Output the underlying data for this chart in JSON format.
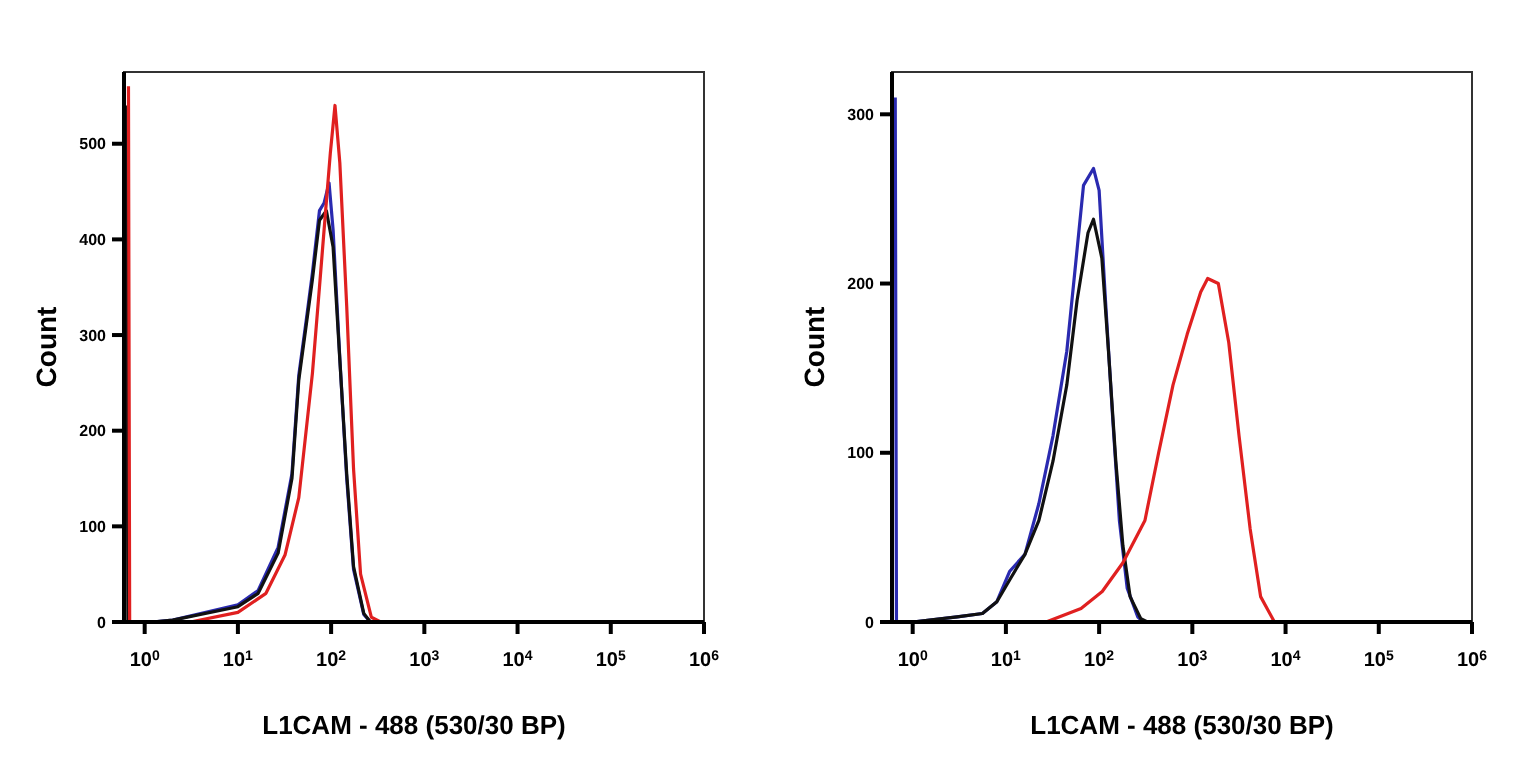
{
  "chart_data": [
    {
      "type": "line",
      "xlabel": "L1CAM - 488 (530/30 BP)",
      "ylabel": "Count",
      "log": "x",
      "xlim": [
        0.6,
        1000000
      ],
      "ylim": [
        0,
        575
      ],
      "xticks": [
        {
          "value": 1,
          "label": "10$^{0}$"
        },
        {
          "value": 10,
          "label": "10$^{1}$"
        },
        {
          "value": 100,
          "label": "10$^{2}$"
        },
        {
          "value": 1000,
          "label": "10$^{3}$"
        },
        {
          "value": 10000,
          "label": "10$^{4}$"
        },
        {
          "value": 100000,
          "label": "10$^{5}$"
        },
        {
          "value": 1000000,
          "label": "10$^{6}$"
        }
      ],
      "yticks": [
        0,
        100,
        200,
        300,
        400,
        500
      ],
      "series": [
        {
          "color": "#2a2ab0",
          "x": [
            1.2,
            2,
            10,
            16.5,
            27,
            38,
            45,
            54,
            63,
            75,
            84,
            95,
            105,
            124,
            147,
            174,
            224,
            264
          ],
          "values": [
            0,
            2,
            18,
            33,
            78,
            155,
            258,
            315,
            365,
            430,
            438,
            459,
            410,
            275,
            150,
            55,
            8,
            0
          ]
        },
        {
          "color": "#111111",
          "x": [
            0.64,
            0.66,
            1.2,
            2,
            10,
            16.5,
            27,
            38,
            45,
            54,
            63,
            75,
            89,
            105,
            124,
            147,
            174,
            224,
            264
          ],
          "values": [
            540,
            0,
            0,
            2,
            16,
            30,
            72,
            150,
            253,
            310,
            358,
            420,
            430,
            392,
            274,
            155,
            58,
            9,
            0
          ]
        },
        {
          "color": "#e02020",
          "x": [
            0.67,
            0.69,
            3.1,
            10,
            20,
            32,
            45,
            63,
            75,
            89,
            98,
            110,
            124,
            147,
            174,
            207,
            270,
            340
          ],
          "values": [
            560,
            0,
            0,
            10,
            30,
            70,
            130,
            260,
            350,
            440,
            490,
            540,
            480,
            330,
            160,
            50,
            5,
            0
          ]
        }
      ]
    },
    {
      "type": "line",
      "xlabel": "L1CAM - 488 (530/30 BP)",
      "ylabel": "Count",
      "log": "x",
      "xlim": [
        0.6,
        1000000
      ],
      "ylim": [
        0,
        325
      ],
      "xticks": [
        {
          "value": 1,
          "label": "10$^{0}$"
        },
        {
          "value": 10,
          "label": "10$^{1}$"
        },
        {
          "value": 100,
          "label": "10$^{2}$"
        },
        {
          "value": 1000,
          "label": "10$^{3}$"
        },
        {
          "value": 10000,
          "label": "10$^{4}$"
        },
        {
          "value": 100000,
          "label": "10$^{5}$"
        },
        {
          "value": 1000000,
          "label": "10$^{6}$"
        }
      ],
      "yticks": [
        0,
        100,
        200,
        300
      ],
      "series": [
        {
          "color": "#2a2ab0",
          "x": [
            0.65,
            0.67,
            1,
            3,
            5.6,
            8,
            11,
            16,
            22.6,
            32,
            45,
            58,
            68,
            87,
            100,
            117,
            140,
            165,
            200,
            260,
            300
          ],
          "values": [
            310,
            0,
            0,
            3,
            5,
            12,
            30,
            40,
            70,
            110,
            160,
            220,
            258,
            268,
            255,
            190,
            120,
            60,
            20,
            3,
            0
          ]
        },
        {
          "color": "#111111",
          "x": [
            1,
            3,
            5.6,
            8,
            11,
            16,
            22.6,
            32,
            45,
            58,
            76,
            87,
            107,
            126,
            151,
            180,
            215,
            280,
            330
          ],
          "values": [
            0,
            3,
            5,
            12,
            25,
            40,
            60,
            95,
            140,
            190,
            230,
            238,
            215,
            160,
            95,
            45,
            15,
            2,
            0
          ]
        },
        {
          "color": "#e02020",
          "x": [
            27,
            64,
            108,
            180,
            310,
            435,
            620,
            880,
            1230,
            1460,
            1900,
            2460,
            3170,
            4170,
            5400,
            7600
          ],
          "values": [
            0,
            8,
            18,
            35,
            60,
            100,
            140,
            170,
            195,
            203,
            200,
            165,
            110,
            55,
            15,
            0
          ]
        }
      ]
    }
  ]
}
